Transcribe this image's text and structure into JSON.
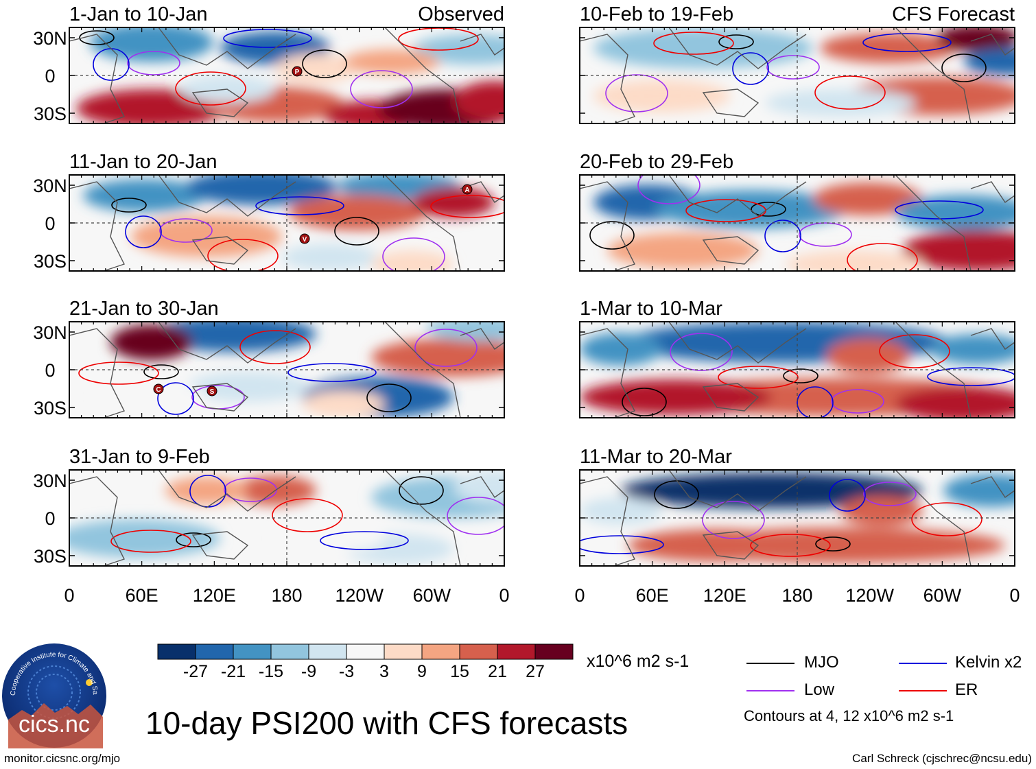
{
  "panels": [
    {
      "label": "1-Jan to 10-Jan",
      "tag": "Observed"
    },
    {
      "label": "11-Jan to 20-Jan",
      "tag": ""
    },
    {
      "label": "21-Jan to 30-Jan",
      "tag": ""
    },
    {
      "label": "31-Jan to 9-Feb",
      "tag": ""
    },
    {
      "label": "10-Feb to 19-Feb",
      "tag": "CFS Forecast"
    },
    {
      "label": "20-Feb to 29-Feb",
      "tag": ""
    },
    {
      "label": "1-Mar to 10-Mar",
      "tag": ""
    },
    {
      "label": "11-Mar to 20-Mar",
      "tag": ""
    }
  ],
  "y_ticks": [
    "30N",
    "0",
    "30S"
  ],
  "x_ticks": [
    "0",
    "60E",
    "120E",
    "180",
    "120W",
    "60W",
    "0"
  ],
  "phase_markers": [
    "P",
    "A",
    "V",
    "C",
    "S"
  ],
  "colorbar": {
    "labels": [
      "-27",
      "-21",
      "-15",
      "-9",
      "-3",
      "3",
      "9",
      "15",
      "21",
      "27"
    ],
    "colors": [
      "#08306b",
      "#2166ac",
      "#4393c3",
      "#92c5de",
      "#d1e5f0",
      "#f7f7f7",
      "#fddbc7",
      "#f4a582",
      "#d6604d",
      "#b2182b",
      "#67001f"
    ],
    "units": "x10^6 m2 s-1"
  },
  "legend": {
    "items": [
      {
        "label": "MJO",
        "color": "#000000"
      },
      {
        "label": "Kelvin x2",
        "color": "#0000dd"
      },
      {
        "label": "Low",
        "color": "#a030f0"
      },
      {
        "label": "ER",
        "color": "#ee0000"
      }
    ],
    "contours_note": "Contours at 4, 12 x10^6 m2 s-1"
  },
  "title": "10-day PSI200 with CFS forecasts",
  "logo": {
    "text": "cics.nc",
    "ring_text": "Cooperative Institute for Climate and Satellites"
  },
  "footer": {
    "left": "monitor.cicsnc.org/mjo",
    "right": "Carl Schreck (cjschrec@ncsu.edu)"
  }
}
